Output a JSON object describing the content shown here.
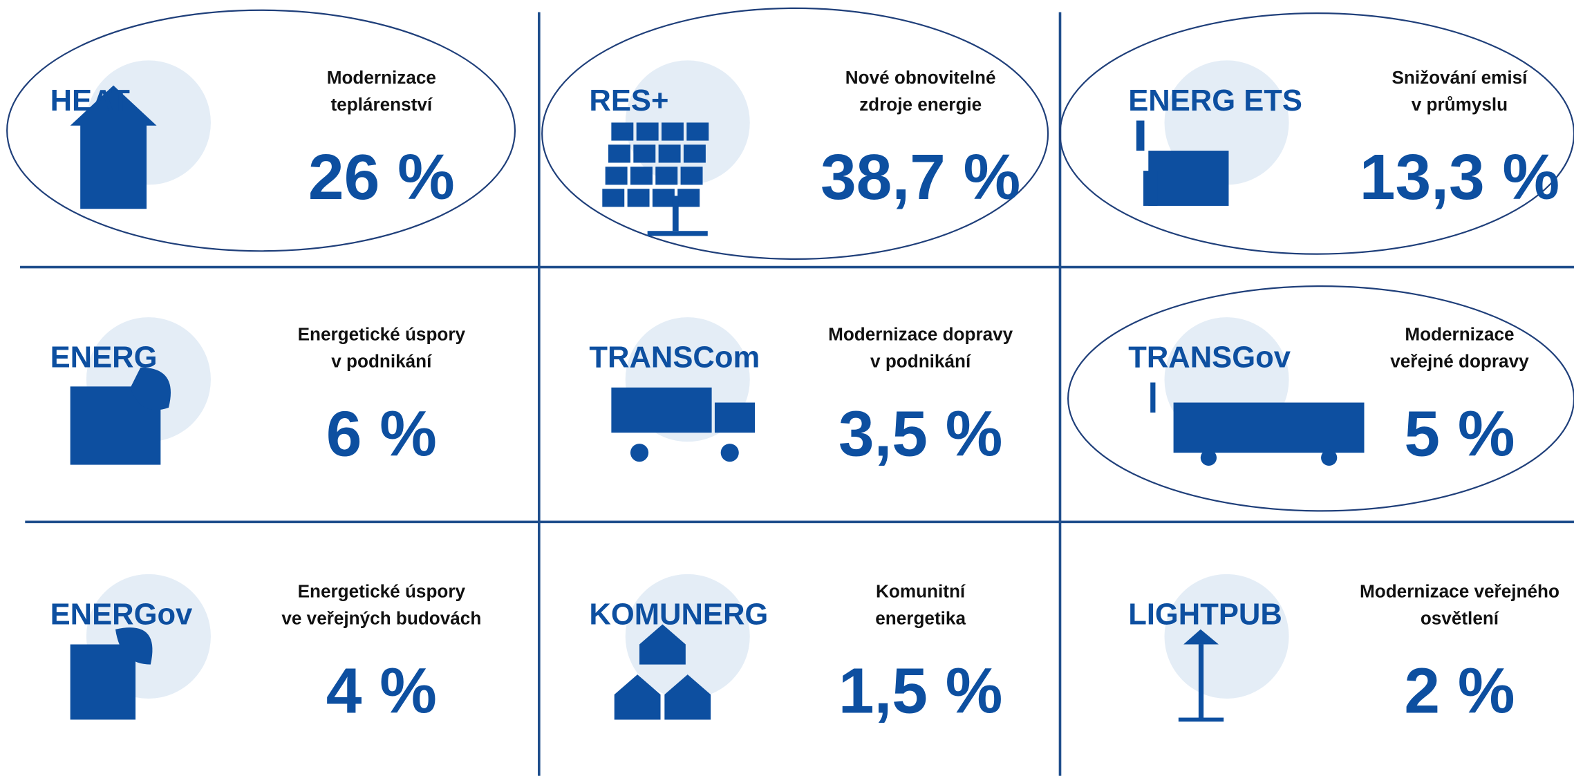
{
  "tiles": [
    {
      "code": "HEAT",
      "description": [
        "Modernizace",
        "teplárenství"
      ],
      "value": "26 %",
      "highlighted": true
    },
    {
      "code": "RES+",
      "description": [
        "Nové obnovitelné",
        "zdroje energie"
      ],
      "value": "38,7 %",
      "highlighted": true
    },
    {
      "code": "ENERG ETS",
      "description": [
        "Snižování emisí",
        "v průmyslu"
      ],
      "value": "13,3 %",
      "highlighted": true
    },
    {
      "code": "ENERG",
      "description": [
        "Energetické úspory",
        "v podnikání"
      ],
      "value": "6 %",
      "highlighted": false
    },
    {
      "code": "TRANSCom",
      "description": [
        "Modernizace dopravy",
        "v podnikání"
      ],
      "value": "3,5 %",
      "highlighted": false
    },
    {
      "code": "TRANSGov",
      "description": [
        "Modernizace",
        "veřejné dopravy"
      ],
      "value": "5 %",
      "highlighted": true
    },
    {
      "code": "ENERGov",
      "description": [
        "Energetické úspory",
        "ve veřejných budovách"
      ],
      "value": "4 %",
      "highlighted": false
    },
    {
      "code": "KOMUNERG",
      "description": [
        "Komunitní",
        "energetika"
      ],
      "value": "1,5 %",
      "highlighted": false
    },
    {
      "code": "LIGHTPUB",
      "description": [
        "Modernizace veřejného",
        "osvětlení"
      ],
      "value": "2 %",
      "highlighted": false
    }
  ]
}
